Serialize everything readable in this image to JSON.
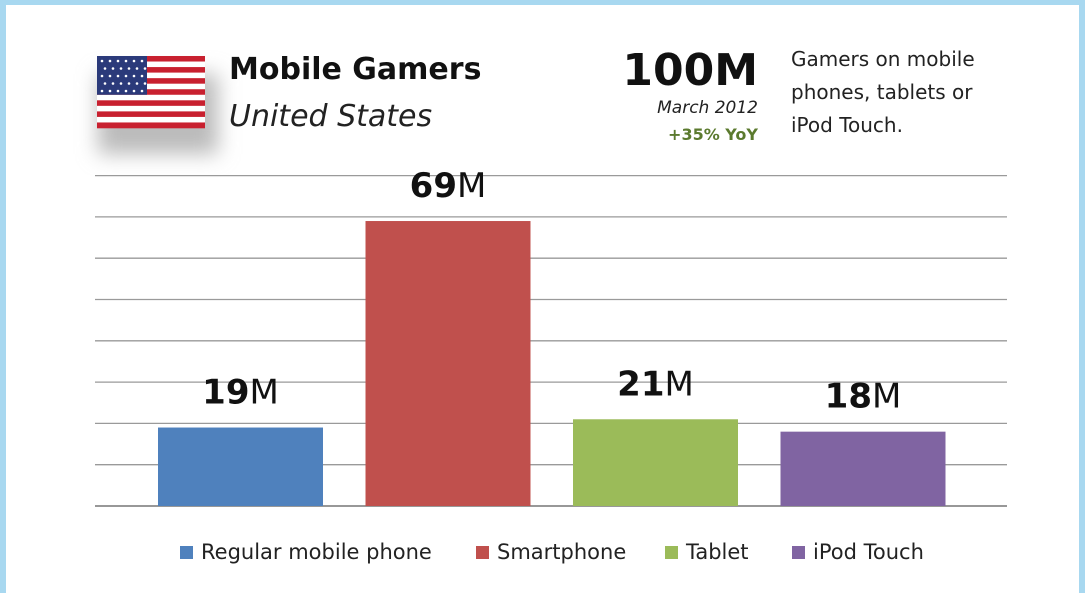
{
  "header": {
    "title": "Mobile Gamers",
    "subtitle": "United States",
    "total": "100M",
    "date": "March 2012",
    "yoy": "+35% YoY",
    "description": [
      "Gamers on mobile",
      "phones, tablets or",
      "iPod Touch."
    ],
    "flag_icon": "us-flag-icon"
  },
  "colors": {
    "regular": "#4f81bd",
    "smartphone": "#c0504d",
    "tablet": "#9bbb59",
    "ipod": "#8064a2",
    "grid": "#9a9a9a",
    "yoy": "#5b7a2e",
    "frame": "#a8d8f0"
  },
  "chart_data": {
    "type": "bar",
    "categories": [
      "Regular mobile phone",
      "Smartphone",
      "Tablet",
      "iPod Touch"
    ],
    "values": [
      19,
      69,
      21,
      18
    ],
    "data_labels": [
      {
        "num": "19",
        "unit": "M"
      },
      {
        "num": "69",
        "unit": "M"
      },
      {
        "num": "21",
        "unit": "M"
      },
      {
        "num": "18",
        "unit": "M"
      }
    ],
    "unit": "M",
    "legend": [
      "Regular mobile phone",
      "Smartphone",
      "Tablet",
      "iPod Touch"
    ],
    "legend_position": "bottom",
    "grid": true,
    "ylim": [
      0,
      80
    ],
    "ystep": 10
  }
}
